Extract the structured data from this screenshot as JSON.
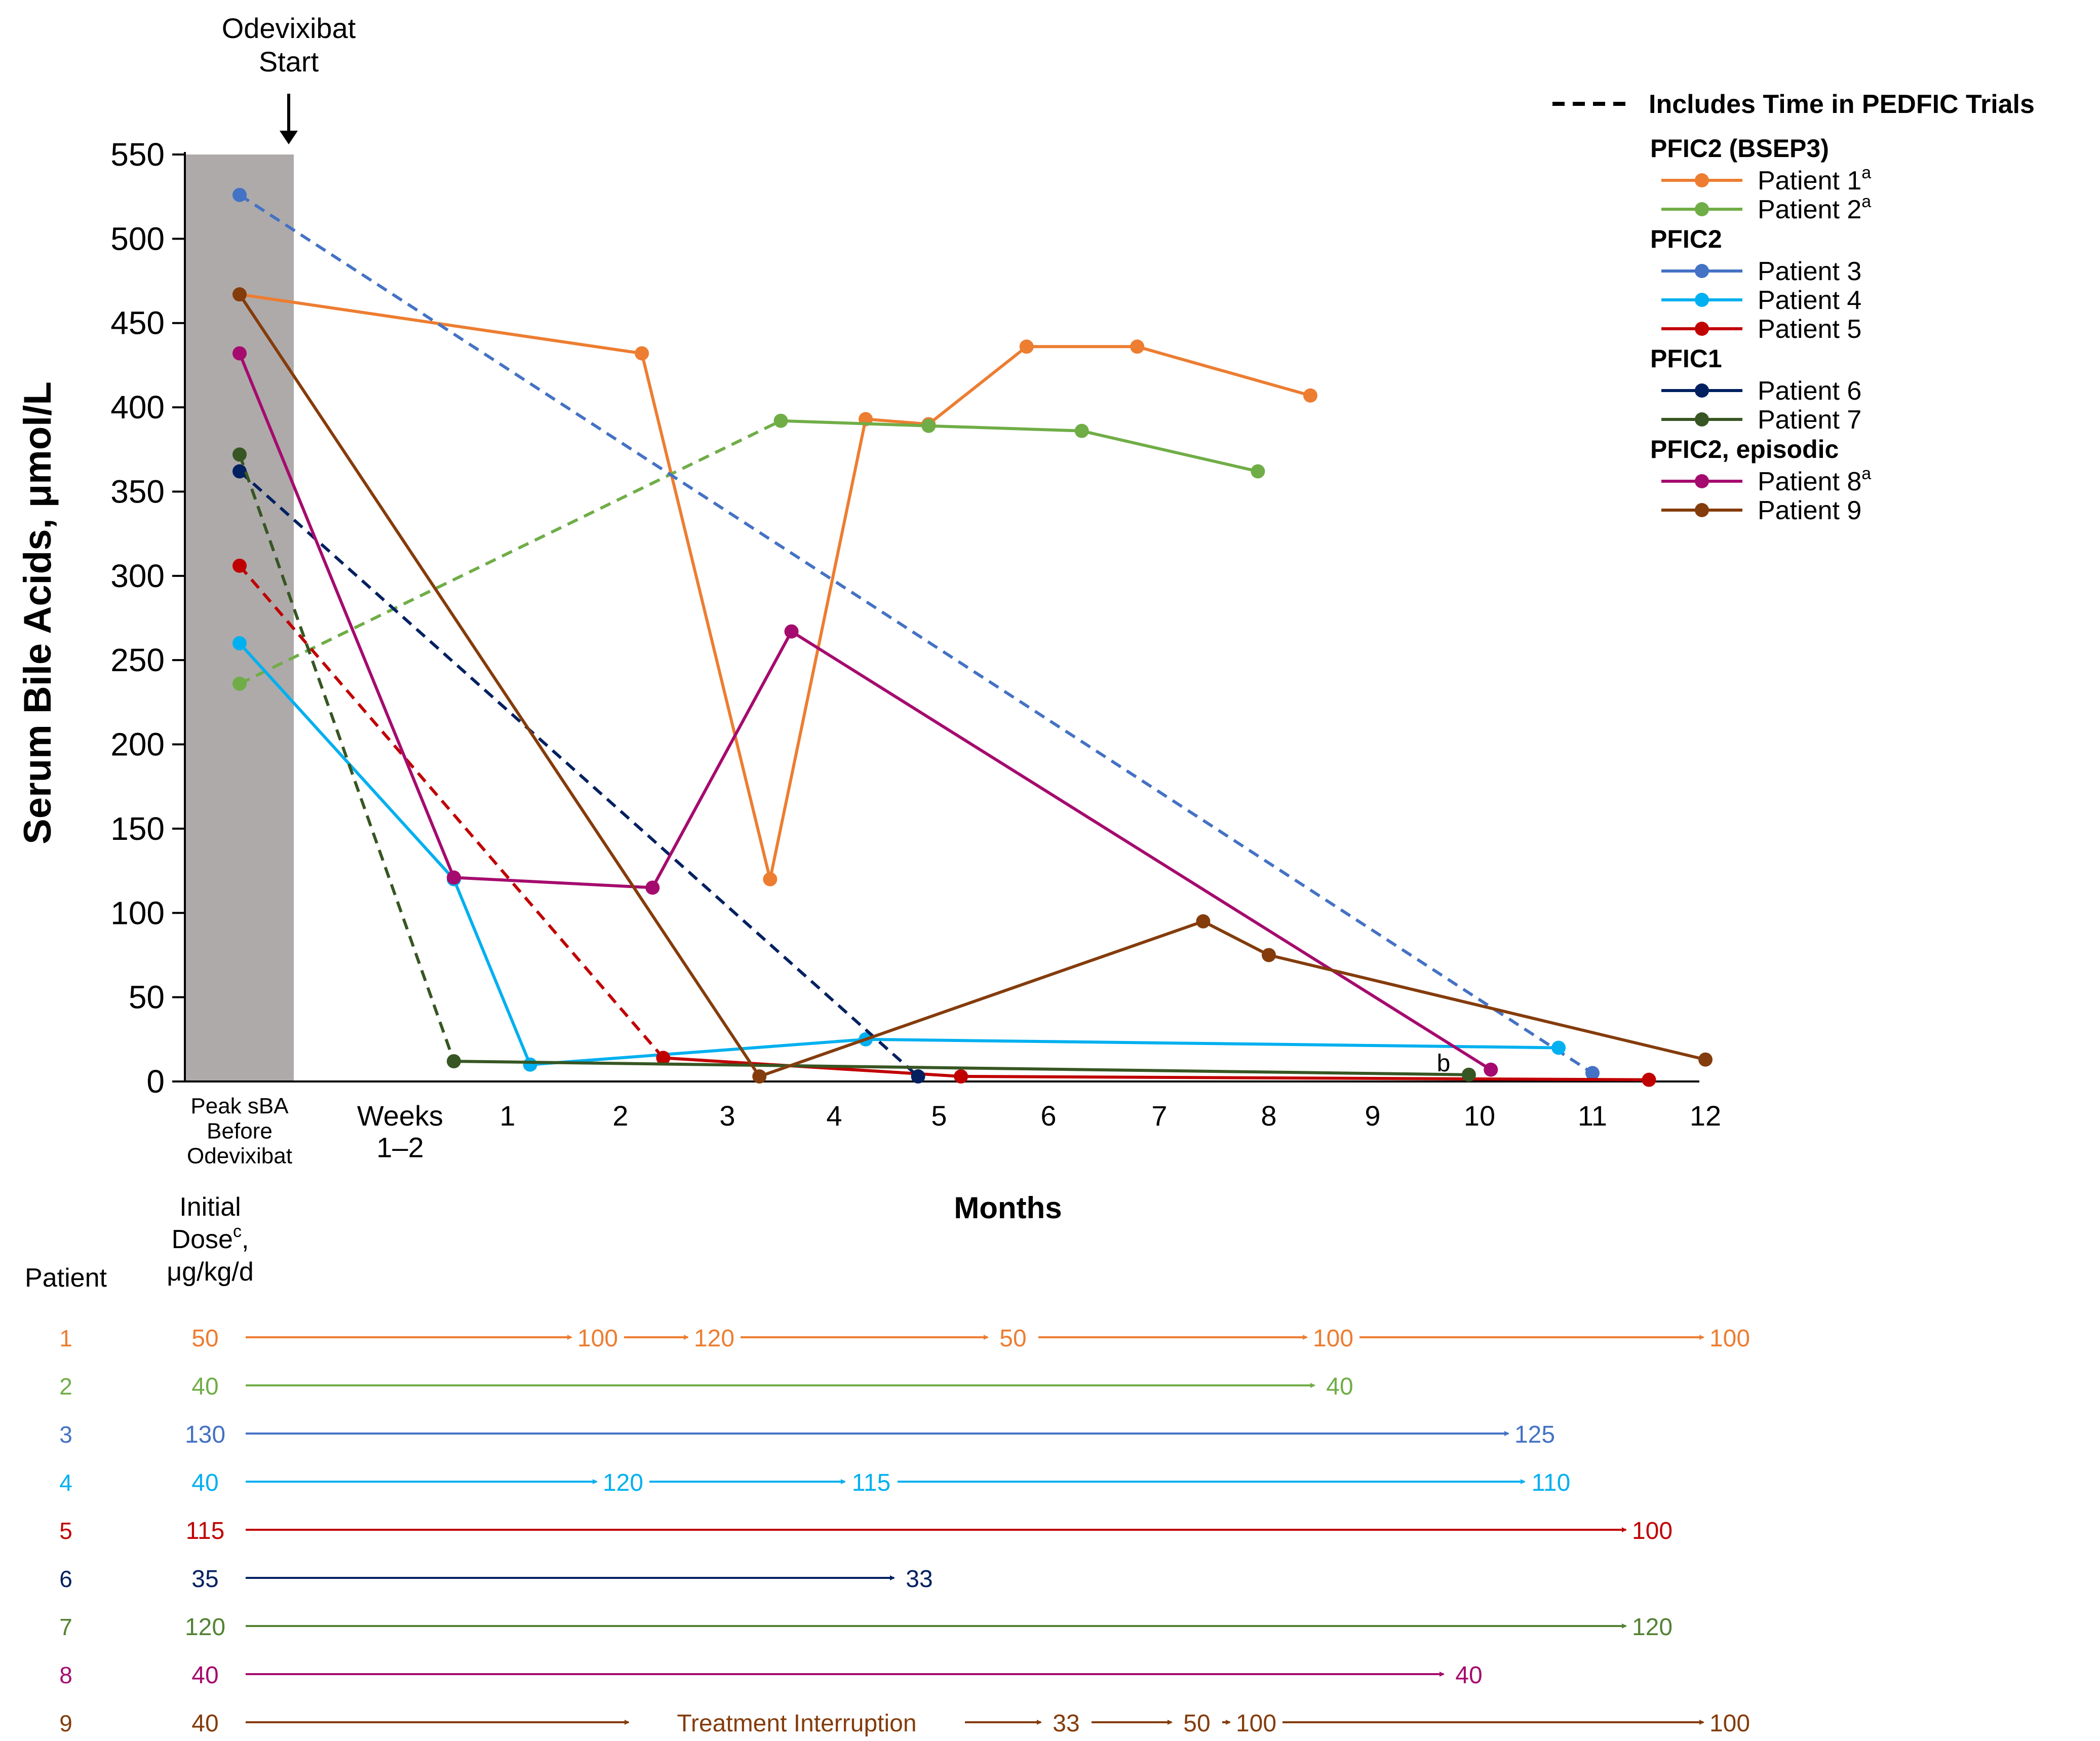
{
  "chart_data": {
    "type": "line",
    "ylabel": "Serum Bile Acids, μmol/L",
    "xlabel": "Months",
    "ylim": [
      0,
      550
    ],
    "yticks": [
      0,
      50,
      100,
      150,
      200,
      250,
      300,
      350,
      400,
      450,
      500,
      550
    ],
    "x_categories": [
      "Peak sBA\nBefore\nOdevixibat",
      "Weeks\n1–2",
      "1",
      "2",
      "3",
      "4",
      "5",
      "6",
      "7",
      "8",
      "9",
      "10",
      "11",
      "12"
    ],
    "annotation_start": "Odevixibat\nStart",
    "annotation_b": "b",
    "legend": {
      "dashed_label": "Includes Time in PEDFIC Trials",
      "groups": [
        {
          "title": "PFIC2 (BSEP3)",
          "patients": [
            "Patient 1",
            "Patient 2"
          ],
          "sups": [
            "a",
            "a"
          ]
        },
        {
          "title": "PFIC2",
          "patients": [
            "Patient 3",
            "Patient 4",
            "Patient 5"
          ],
          "sups": [
            "",
            "",
            ""
          ]
        },
        {
          "title": "PFIC1",
          "patients": [
            "Patient 6",
            "Patient 7"
          ],
          "sups": [
            "",
            ""
          ]
        },
        {
          "title": "PFIC2, episodic",
          "patients": [
            "Patient 8",
            "Patient 9"
          ],
          "sups": [
            "a",
            ""
          ]
        }
      ]
    },
    "series": [
      {
        "name": "Patient 1",
        "color": "#ED7D31",
        "dashed_segments": [],
        "x": [
          0,
          3.2,
          4.4,
          5.3,
          5.9,
          6.8,
          7.8,
          9.4,
          10.2
        ],
        "y": [
          467,
          432,
          120,
          393,
          390,
          436,
          436,
          407,
          null
        ]
      },
      {
        "name": "Patient 2",
        "color": "#70AD47",
        "dashed_segments": [
          0
        ],
        "x": [
          0,
          4.5,
          5.9,
          7.3,
          8.9
        ],
        "y": [
          236,
          392,
          389,
          386,
          362
        ]
      },
      {
        "name": "Patient 3",
        "color": "#4472C4",
        "dashed_segments": [
          0
        ],
        "x": [
          0,
          12.0
        ],
        "y": [
          526,
          5
        ]
      },
      {
        "name": "Patient 4",
        "color": "#00B0F0",
        "dashed_segments": [],
        "x": [
          0,
          1.5,
          2.2,
          5.3,
          11.7
        ],
        "y": [
          260,
          120,
          10,
          25,
          20
        ]
      },
      {
        "name": "Patient 5",
        "color": "#C00000",
        "dashed_segments": [
          0
        ],
        "x": [
          0,
          3.4,
          6.2,
          12.5
        ],
        "y": [
          306,
          14,
          3,
          1
        ]
      },
      {
        "name": "Patient 6",
        "color": "#002060",
        "dashed_segments": [
          0
        ],
        "x": [
          0,
          5.8
        ],
        "y": [
          362,
          3
        ]
      },
      {
        "name": "Patient 7",
        "color": "#375623",
        "dashed_segments": [
          0
        ],
        "x": [
          0,
          1.5,
          10.9
        ],
        "y": [
          372,
          12,
          4
        ]
      },
      {
        "name": "Patient 8",
        "color": "#A50B6E",
        "dashed_segments": [],
        "x": [
          0,
          1.5,
          3.3,
          4.6,
          11.1
        ],
        "y": [
          432,
          121,
          115,
          267,
          7
        ]
      },
      {
        "name": "Patient 9",
        "color": "#843C0C",
        "dashed_segments": [],
        "x": [
          0,
          4.3,
          8.4,
          9.0,
          13.0
        ],
        "y": [
          467,
          3,
          95,
          75,
          13
        ]
      }
    ]
  },
  "dose_table": {
    "header_patient": "Patient",
    "header_dose": "Initial\nDose",
    "header_dose_sup": "c",
    "header_dose_unit": "μg/kg/d",
    "rows": [
      {
        "patient": "1",
        "color": "#ED7D31",
        "initial": "50",
        "changes": [
          "100",
          "120",
          "50",
          "100",
          "100"
        ]
      },
      {
        "patient": "2",
        "color": "#70AD47",
        "initial": "40",
        "changes": [
          "40"
        ]
      },
      {
        "patient": "3",
        "color": "#4472C4",
        "initial": "130",
        "changes": [
          "125"
        ]
      },
      {
        "patient": "4",
        "color": "#00B0F0",
        "initial": "40",
        "changes": [
          "120",
          "115",
          "110"
        ]
      },
      {
        "patient": "5",
        "color": "#C00000",
        "initial": "115",
        "changes": [
          "100"
        ]
      },
      {
        "patient": "6",
        "color": "#002060",
        "initial": "35",
        "changes": [
          "33"
        ]
      },
      {
        "patient": "7",
        "color": "#548235",
        "initial": "120",
        "changes": [
          "120"
        ]
      },
      {
        "patient": "8",
        "color": "#A50B6E",
        "initial": "40",
        "changes": [
          "40"
        ]
      },
      {
        "patient": "9",
        "color": "#843C0C",
        "initial": "40",
        "changes": [
          "Treatment  Interruption",
          "33",
          "50",
          "100",
          "100"
        ]
      }
    ]
  }
}
